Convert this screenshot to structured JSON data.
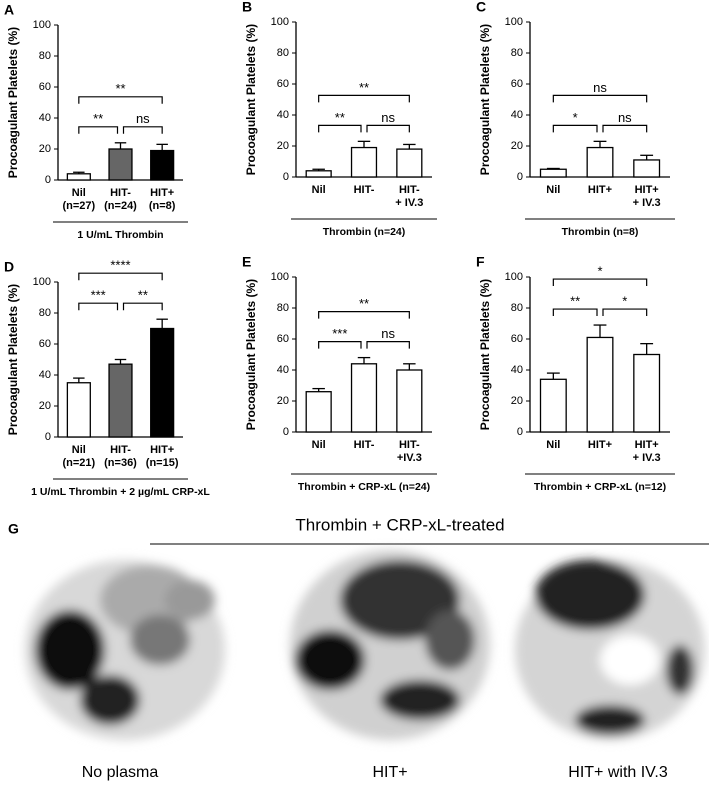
{
  "chart_data": [
    {
      "type": "bar",
      "panel": "A",
      "ylabel": "Procoagulant Platelets (%)",
      "xlabel": "1 U/mL Thrombin",
      "categories": [
        [
          "Nil",
          "(n=27)"
        ],
        [
          "HIT-",
          "(n=24)"
        ],
        [
          "HIT+",
          "(n=8)"
        ]
      ],
      "values": [
        4,
        20,
        19
      ],
      "errors": [
        1,
        4,
        4
      ],
      "colors": [
        "#ffffff",
        "#666666",
        "#000000"
      ],
      "ylim": [
        0,
        100
      ],
      "yticks": [
        0,
        20,
        40,
        60,
        80,
        100
      ],
      "significance": [
        "**",
        "ns",
        "**"
      ]
    },
    {
      "type": "bar",
      "panel": "B",
      "ylabel": "Procoagulant Platelets (%)",
      "xlabel": "Thrombin (n=24)",
      "categories": [
        [
          "Nil"
        ],
        [
          "HIT-"
        ],
        [
          "HIT-",
          "+ IV.3"
        ]
      ],
      "values": [
        4,
        19,
        18
      ],
      "errors": [
        1,
        4,
        3
      ],
      "colors": [
        "#ffffff",
        "#ffffff",
        "#ffffff"
      ],
      "ylim": [
        0,
        100
      ],
      "yticks": [
        0,
        20,
        40,
        60,
        80,
        100
      ],
      "significance": [
        "**",
        "ns",
        "**"
      ]
    },
    {
      "type": "bar",
      "panel": "C",
      "ylabel": "Procoagulant Platelets (%)",
      "xlabel": "Thrombin (n=8)",
      "categories": [
        [
          "Nil"
        ],
        [
          "HIT+"
        ],
        [
          "HIT+",
          "+ IV.3"
        ]
      ],
      "values": [
        5,
        19,
        11
      ],
      "errors": [
        0.5,
        4,
        3
      ],
      "colors": [
        "#ffffff",
        "#ffffff",
        "#ffffff"
      ],
      "ylim": [
        0,
        100
      ],
      "yticks": [
        0,
        20,
        40,
        60,
        80,
        100
      ],
      "significance": [
        "*",
        "ns",
        "ns"
      ]
    },
    {
      "type": "bar",
      "panel": "D",
      "ylabel": "Procoagulant Platelets (%)",
      "xlabel": "1 U/mL Thrombin + 2 µg/mL CRP-xL",
      "categories": [
        [
          "Nil",
          "(n=21)"
        ],
        [
          "HIT-",
          "(n=36)"
        ],
        [
          "HIT+",
          "(n=15)"
        ]
      ],
      "values": [
        35,
        47,
        70
      ],
      "errors": [
        3,
        3,
        6
      ],
      "colors": [
        "#ffffff",
        "#666666",
        "#000000"
      ],
      "ylim": [
        0,
        100
      ],
      "yticks": [
        0,
        20,
        40,
        60,
        80,
        100
      ],
      "significance": [
        "***",
        "**",
        "****"
      ]
    },
    {
      "type": "bar",
      "panel": "E",
      "ylabel": "Procoagulant Platelets (%)",
      "xlabel": "Thrombin + CRP-xL (n=24)",
      "categories": [
        [
          "Nil"
        ],
        [
          "HIT-"
        ],
        [
          "HIT-",
          "+IV.3"
        ]
      ],
      "values": [
        26,
        44,
        40
      ],
      "errors": [
        2,
        4,
        4
      ],
      "colors": [
        "#ffffff",
        "#ffffff",
        "#ffffff"
      ],
      "ylim": [
        0,
        100
      ],
      "yticks": [
        0,
        20,
        40,
        60,
        80,
        100
      ],
      "significance": [
        "***",
        "ns",
        "**"
      ]
    },
    {
      "type": "bar",
      "panel": "F",
      "ylabel": "Procoagulant Platelets (%)",
      "xlabel": "Thrombin + CRP-xL (n=12)",
      "categories": [
        [
          "Nil"
        ],
        [
          "HIT+"
        ],
        [
          "HIT+",
          "+ IV.3"
        ]
      ],
      "values": [
        34,
        61,
        50
      ],
      "errors": [
        4,
        8,
        7
      ],
      "colors": [
        "#ffffff",
        "#ffffff",
        "#ffffff"
      ],
      "ylim": [
        0,
        100
      ],
      "yticks": [
        0,
        20,
        40,
        60,
        80,
        100
      ],
      "significance": [
        "**",
        "*",
        "*"
      ]
    }
  ],
  "panel_g": {
    "panel": "G",
    "title": "Thrombin + CRP-xL-treated",
    "images": [
      "No plasma",
      "HIT+",
      "HIT+ with IV.3"
    ]
  }
}
